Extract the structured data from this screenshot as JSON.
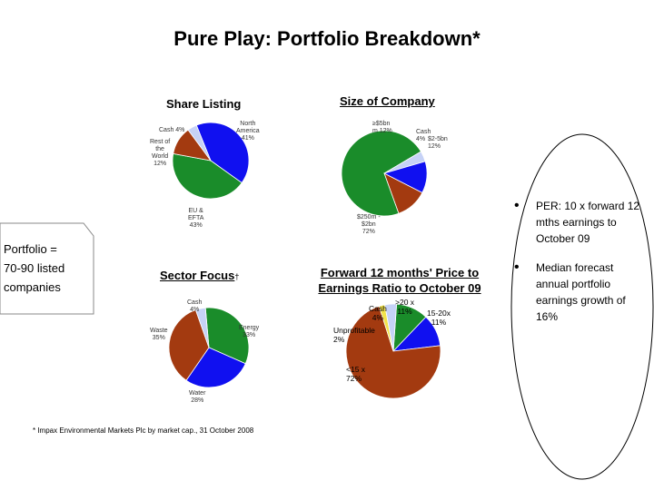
{
  "title": "Pure Play:  Portfolio Breakdown*",
  "portfolio_note": {
    "line1": "Portfolio =",
    "line2": "70-90 listed",
    "line3": "companies"
  },
  "bullets": [
    "PER: 10 x forward 12 mths earnings to October 09",
    "Median forecast annual portfolio earnings growth of 16%"
  ],
  "footnote": "* Impax Environmental Markets Plc by market cap., 31 October 2008",
  "colors": {
    "blue": "#1010f0",
    "green": "#1a8c2a",
    "rust": "#a33a10",
    "lightblue": "#c6d2f6",
    "yellow": "#f2e34a"
  },
  "chart_data": [
    {
      "type": "pie",
      "title": "Share Listing",
      "slices": [
        {
          "label": "North America",
          "value": 41,
          "color": "#1010f0"
        },
        {
          "label": "EU & EFTA",
          "value": 43,
          "color": "#1a8c2a"
        },
        {
          "label": "Rest of the World",
          "value": 12,
          "color": "#a33a10"
        },
        {
          "label": "Cash",
          "value": 4,
          "color": "#c6d2f6"
        }
      ],
      "labels_text": {
        "north_america": "North\nAmerica\n41%",
        "eu": "EU &\nEFTA\n43%",
        "rest": "Rest of\nthe\nWorld\n12%",
        "cash": "Cash 4%"
      }
    },
    {
      "type": "pie",
      "title": "Size of Company",
      "slices": [
        {
          "label": "$2bn - $5bn",
          "value": 12,
          "color": "#a33a10"
        },
        {
          "label": ">$2bn",
          "value": 72,
          "color": "#1a8c2a"
        },
        {
          "label": "Cash",
          "value": 4,
          "color": "#c6d2f6"
        },
        {
          "label": "> $5bn",
          "value": 12,
          "color": "#1010f0"
        }
      ],
      "labels_text": {
        "large": "≥$5bn\nm 12%",
        "cash": "Cash\n4%",
        "mid": "$2-5bn\n12%",
        "small": "$250m -\n$2bn\n72%"
      }
    },
    {
      "type": "pie",
      "title": "Sector Focus",
      "title_mark": "†",
      "slices": [
        {
          "label": "Energy",
          "value": 33,
          "color": "#1a8c2a"
        },
        {
          "label": "Water",
          "value": 28,
          "color": "#1010f0"
        },
        {
          "label": "Waste",
          "value": 35,
          "color": "#a33a10"
        },
        {
          "label": "Cash",
          "value": 4,
          "color": "#c6d2f6"
        }
      ],
      "labels_text": {
        "cash": "Cash\n4%",
        "energy": "Energy\n33%",
        "waste": "Waste\n35%",
        "water": "Water\n28%"
      }
    },
    {
      "type": "pie",
      "title": "Forward 12 months' Price to Earnings Ratio to October 09",
      "slices": [
        {
          "label": ">20 x",
          "value": 11,
          "color": "#1a8c2a"
        },
        {
          "label": "15-20x",
          "value": 11,
          "color": "#1010f0"
        },
        {
          "label": "<15 x",
          "value": 72,
          "color": "#a33a10"
        },
        {
          "label": "Unprofitable",
          "value": 2,
          "color": "#f2e34a"
        },
        {
          "label": "Cash",
          "value": 4,
          "color": "#c6d2f6"
        }
      ],
      "labels_text": {
        "cash": "Cash\n4%",
        "gt20": ">20 x\n11%",
        "mid": "15-20x\n11%",
        "unprofitable": "Unprofitable\n2%",
        "lt15": "<15 x\n72%"
      }
    }
  ]
}
